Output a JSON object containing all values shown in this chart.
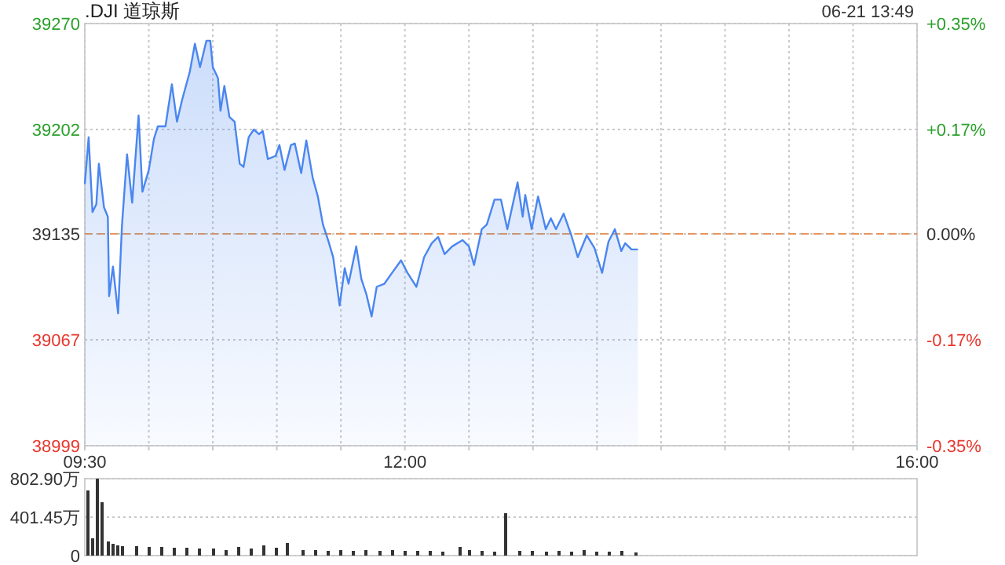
{
  "chart_data": [
    {
      "type": "area",
      "title": ".DJI 道琼斯",
      "annotations": [
        "06-21 13:49"
      ],
      "xlim": [
        9.5,
        16
      ],
      "xticks": [
        {
          "value": 9.5,
          "label": "09:30"
        },
        {
          "value": 10,
          "label": null
        },
        {
          "value": 10.5,
          "label": null
        },
        {
          "value": 11,
          "label": null
        },
        {
          "value": 11.5,
          "label": null
        },
        {
          "value": 12,
          "label": "12:00"
        },
        {
          "value": 12.5,
          "label": null
        },
        {
          "value": 13,
          "label": null
        },
        {
          "value": 13.5,
          "label": null
        },
        {
          "value": 14,
          "label": null
        },
        {
          "value": 14.5,
          "label": null
        },
        {
          "value": 15,
          "label": null
        },
        {
          "value": 15.5,
          "label": null
        },
        {
          "value": 16,
          "label": "16:00"
        }
      ],
      "ylim": [
        38999,
        39270
      ],
      "yticks": [
        38999,
        39067,
        39135,
        39202,
        39270
      ],
      "y2lim": [
        -0.348,
        0.345
      ],
      "y2ticks": [
        {
          "value": -0.348,
          "label": "-0.35%"
        },
        {
          "value": -0.174,
          "label": "-0.17%"
        },
        {
          "value": 0,
          "label": "0.00%"
        },
        {
          "value": 0.171,
          "label": "+0.17%"
        },
        {
          "value": 0.345,
          "label": "+0.35%"
        }
      ],
      "grid": true,
      "ref_lines": [
        {
          "axis": "y",
          "value": 39135,
          "color": "#e8955a",
          "line_style": "dashed"
        }
      ],
      "series": [
        {
          "color": "#4a86f0",
          "x": [
            9.5,
            9.53,
            9.56,
            9.59,
            9.61,
            9.65,
            9.68,
            9.69,
            9.72,
            9.76,
            9.79,
            9.83,
            9.87,
            9.92,
            9.95,
            10.0,
            10.04,
            10.07,
            10.13,
            10.18,
            10.22,
            10.26,
            10.32,
            10.36,
            10.4,
            10.45,
            10.48,
            10.5,
            10.54,
            10.56,
            10.59,
            10.63,
            10.67,
            10.71,
            10.74,
            10.78,
            10.82,
            10.86,
            10.89,
            10.93,
            10.99,
            11.02,
            11.06,
            11.11,
            11.14,
            11.19,
            11.23,
            11.28,
            11.32,
            11.36,
            11.4,
            11.44,
            11.49,
            11.53,
            11.56,
            11.62,
            11.66,
            11.7,
            11.74,
            11.78,
            11.84,
            11.9,
            11.97,
            12.02,
            12.09,
            12.15,
            12.21,
            12.26,
            12.31,
            12.37,
            12.45,
            12.5,
            12.54,
            12.6,
            12.64,
            12.7,
            12.75,
            12.8,
            12.88,
            12.92,
            12.94,
            12.99,
            13.04,
            13.1,
            13.14,
            13.18,
            13.24,
            13.3,
            13.35,
            13.42,
            13.48,
            13.54,
            13.59,
            13.64,
            13.69,
            13.72,
            13.77,
            13.82
          ],
          "values": [
            39167,
            39197,
            39149,
            39154,
            39180,
            39152,
            39146,
            39095,
            39114,
            39084,
            39140,
            39186,
            39155,
            39211,
            39162,
            39176,
            39196,
            39204,
            39204,
            39231,
            39207,
            39221,
            39239,
            39257,
            39242,
            39259,
            39259,
            39242,
            39235,
            39214,
            39230,
            39210,
            39207,
            39180,
            39178,
            39197,
            39202,
            39199,
            39201,
            39183,
            39185,
            39192,
            39176,
            39192,
            39193,
            39174,
            39195,
            39171,
            39159,
            39141,
            39131,
            39120,
            39089,
            39113,
            39103,
            39127,
            39106,
            39096,
            39082,
            39101,
            39103,
            39110,
            39118,
            39110,
            39101,
            39120,
            39129,
            39133,
            39122,
            39127,
            39131,
            39127,
            39115,
            39138,
            39141,
            39157,
            39157,
            39138,
            39168,
            39146,
            39160,
            39138,
            39159,
            39138,
            39145,
            39138,
            39148,
            39134,
            39120,
            39134,
            39126,
            39110,
            39130,
            39138,
            39124,
            39129,
            39125,
            39125
          ]
        }
      ]
    },
    {
      "type": "bar",
      "tick_labels": "y",
      "xlim": [
        9.5,
        16
      ],
      "ylim": [
        0,
        802.9
      ],
      "yticks": [
        0,
        {
          "value": 401.45,
          "label": "401.45万"
        },
        {
          "value": 802.9,
          "label": "802.90万"
        }
      ],
      "grid": "y",
      "series": [
        {
          "color": "#333333",
          "x": [
            9.52,
            9.56,
            9.6,
            9.64,
            9.68,
            9.72,
            9.76,
            9.8,
            9.9,
            10.0,
            10.1,
            10.2,
            10.3,
            10.4,
            10.5,
            10.6,
            10.7,
            10.8,
            10.9,
            11.0,
            11.08,
            11.2,
            11.3,
            11.4,
            11.5,
            11.6,
            11.7,
            11.8,
            11.9,
            12.0,
            12.1,
            12.2,
            12.3,
            12.43,
            12.5,
            12.6,
            12.7,
            12.79,
            12.9,
            13.0,
            13.1,
            13.2,
            13.3,
            13.4,
            13.5,
            13.6,
            13.7,
            13.8
          ],
          "values": [
            680,
            180,
            800,
            560,
            150,
            120,
            110,
            100,
            100,
            90,
            90,
            80,
            80,
            70,
            70,
            60,
            90,
            70,
            110,
            80,
            130,
            60,
            60,
            50,
            60,
            50,
            60,
            50,
            60,
            50,
            50,
            50,
            40,
            90,
            60,
            50,
            40,
            440,
            50,
            50,
            40,
            50,
            40,
            60,
            40,
            40,
            50,
            30
          ]
        }
      ]
    }
  ]
}
